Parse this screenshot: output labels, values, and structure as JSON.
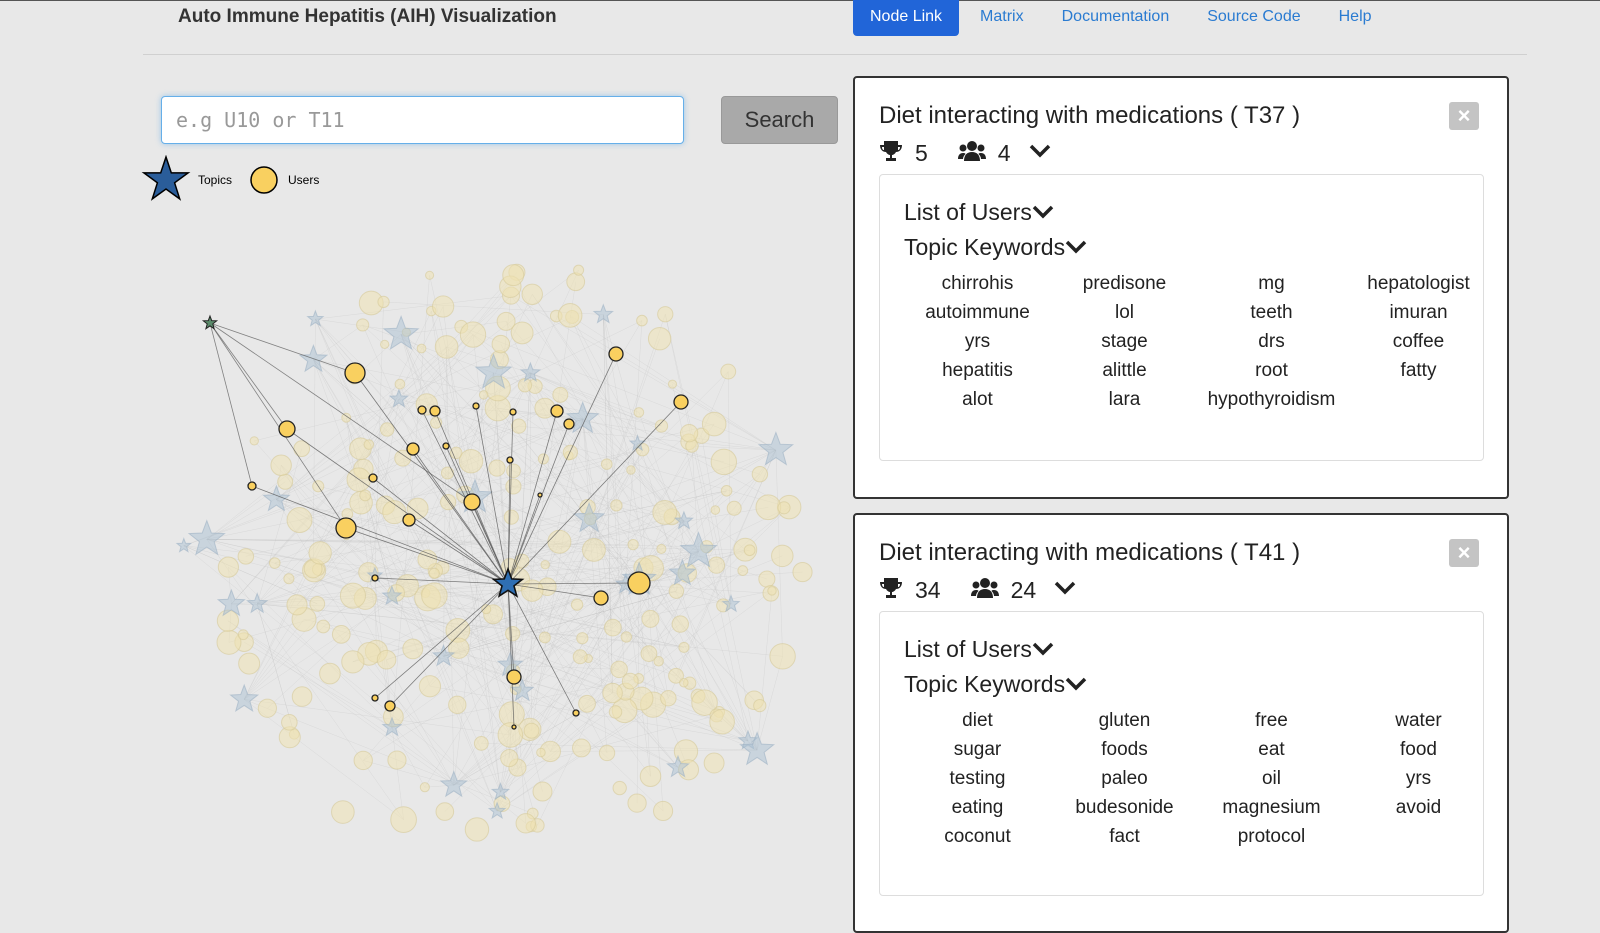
{
  "header": {
    "title": "Auto Immune Hepatitis (AIH) Visualization",
    "nav": [
      "Node Link",
      "Matrix",
      "Documentation",
      "Source Code",
      "Help"
    ],
    "active_nav": "Node Link"
  },
  "search": {
    "placeholder": "e.g U10 or T11",
    "button_label": "Search"
  },
  "legend": {
    "topics_label": "Topics",
    "users_label": "Users"
  },
  "colors": {
    "accent": "#2165d8",
    "link": "#2a7bd1",
    "topic_star": "#2f6fb3",
    "user_node": "#f9d060"
  },
  "cards": [
    {
      "title": "Diet interacting with medications ( T37 )",
      "rank": "5",
      "users": "4",
      "list_of_users_label": "List of Users",
      "keywords_label": "Topic Keywords",
      "keywords": [
        "chirrohis",
        "predisone",
        "mg",
        "hepatologist",
        "autoimmune",
        "lol",
        "teeth",
        "imuran",
        "yrs",
        "stage",
        "drs",
        "coffee",
        "hepatitis",
        "alittle",
        "root",
        "fatty",
        "alot",
        "lara",
        "hypothyroidism"
      ]
    },
    {
      "title": "Diet interacting with medications ( T41 )",
      "rank": "34",
      "users": "24",
      "list_of_users_label": "List of Users",
      "keywords_label": "Topic Keywords",
      "keywords": [
        "diet",
        "gluten",
        "free",
        "water",
        "sugar",
        "foods",
        "eat",
        "food",
        "testing",
        "paleo",
        "oil",
        "yrs",
        "eating",
        "budesonide",
        "magnesium",
        "avoid",
        "coconut",
        "fact",
        "protocol"
      ]
    }
  ]
}
